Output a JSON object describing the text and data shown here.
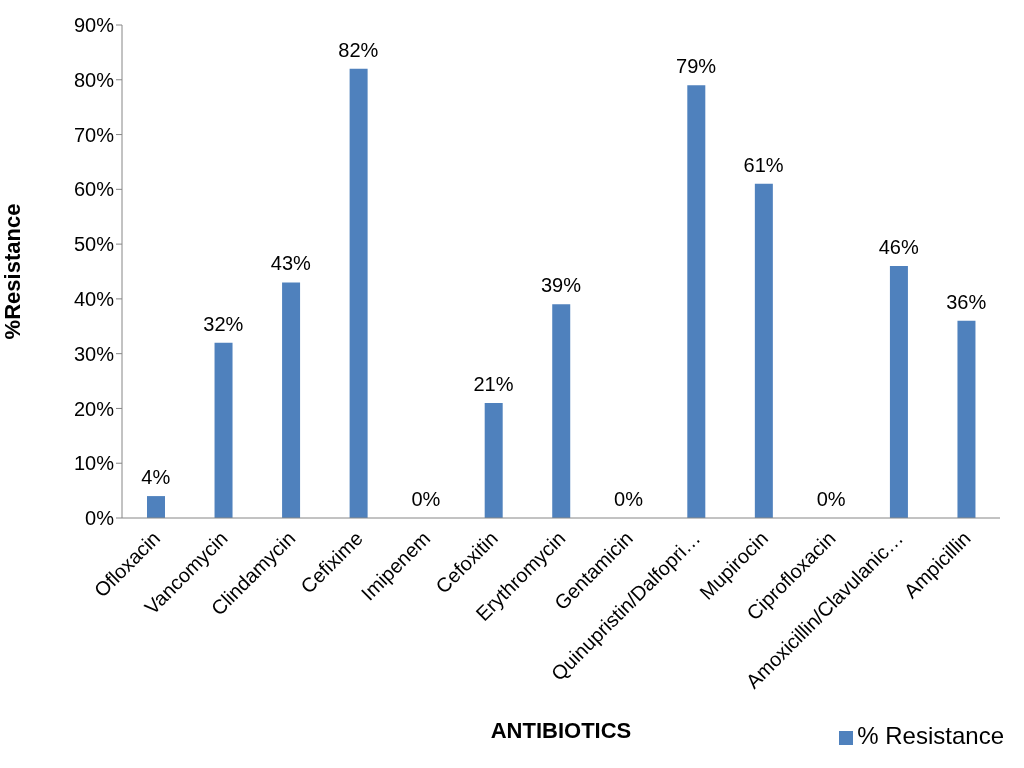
{
  "chart_data": {
    "type": "bar",
    "xlabel": "ANTIBIOTICS",
    "ylabel": "%Resistance",
    "categories": [
      "Ofloxacin",
      "Vancomycin",
      "Clindamycin",
      "Cefixime",
      "Imipenem",
      "Cefoxitin",
      "Erythromycin",
      "Gentamicin",
      "Quinupristin/Dalfopri…",
      "Mupirocin",
      "Ciprofloxacin",
      "Amoxicillin/Clavulanic…",
      "Ampicillin"
    ],
    "series": [
      {
        "name": "% Resistance",
        "color": "#4f81bd",
        "values": [
          4,
          32,
          43,
          82,
          0,
          21,
          39,
          0,
          79,
          61,
          0,
          46,
          36
        ],
        "value_labels": [
          "4%",
          "32%",
          "43%",
          "82%",
          "0%",
          "21%",
          "39%",
          "0%",
          "79%",
          "61%",
          "0%",
          "46%",
          "36%"
        ]
      }
    ],
    "ylim": [
      0,
      90
    ],
    "yticks": [
      {
        "value": 0,
        "label": "0%"
      },
      {
        "value": 10,
        "label": "10%"
      },
      {
        "value": 20,
        "label": "20%"
      },
      {
        "value": 30,
        "label": "30%"
      },
      {
        "value": 40,
        "label": "40%"
      },
      {
        "value": 50,
        "label": "50%"
      },
      {
        "value": 60,
        "label": "60%"
      },
      {
        "value": 70,
        "label": "70%"
      },
      {
        "value": 80,
        "label": "80%"
      },
      {
        "value": 90,
        "label": "90%"
      }
    ],
    "grid": false,
    "legend": "bottom right"
  }
}
